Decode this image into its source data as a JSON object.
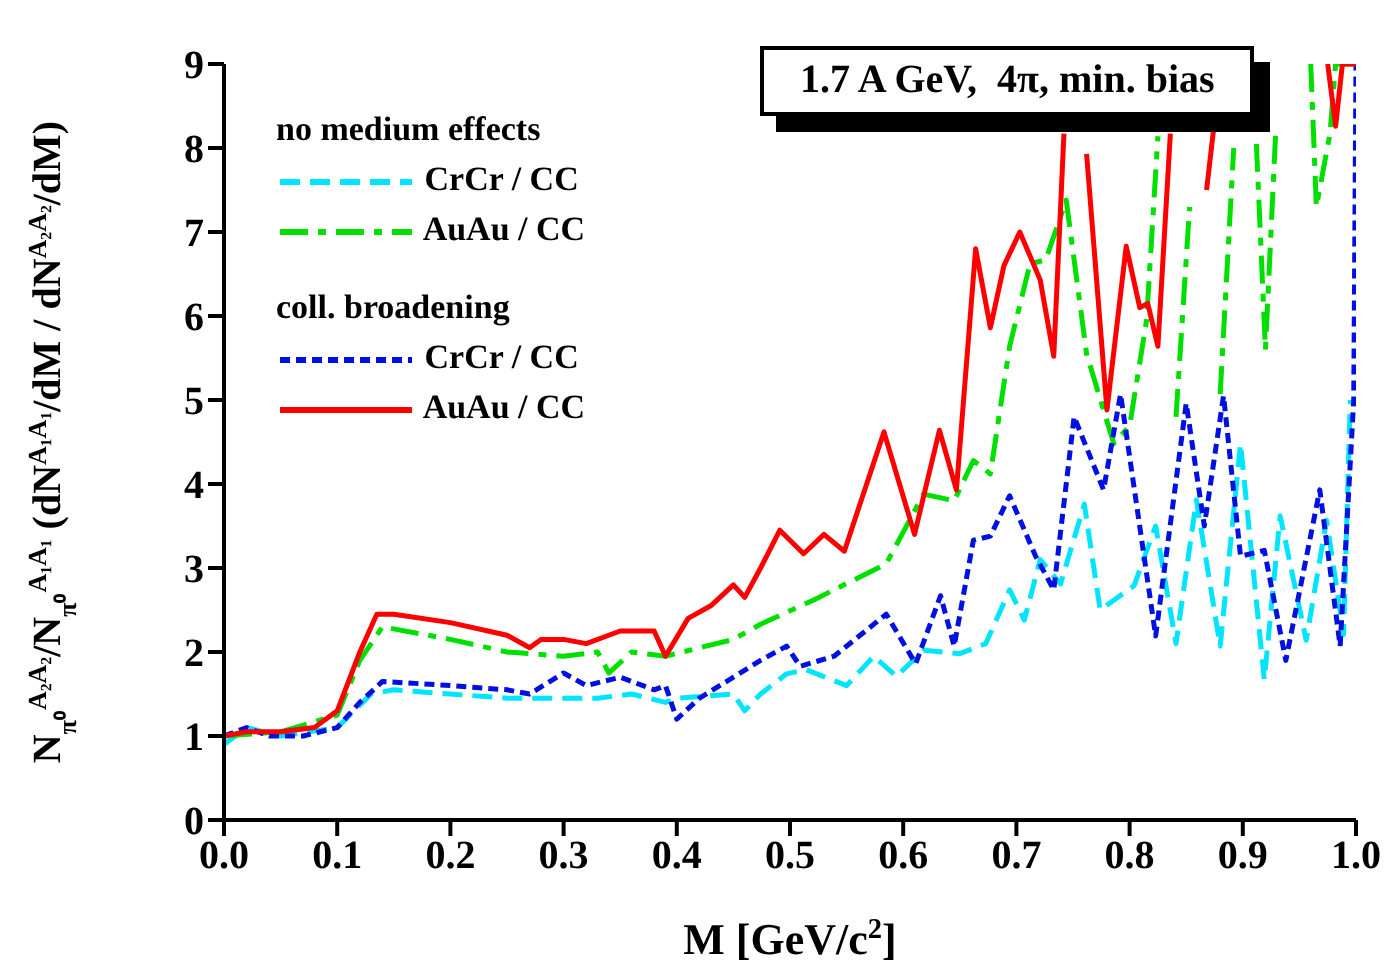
{
  "chart_data": {
    "type": "line",
    "xlabel": "M [GeV/c$^{2}$]",
    "ylabel": "N$_{π⁰}$$^{A₂A₂}$/N$_{π⁰}$$^{A₁A₁}$ (dN$^{A₁A₁}$/dM / dN$^{A₂A₂}$/dM)",
    "annotations": [
      "1.7 A GeV,  4π, min. bias",
      "no medium effects",
      "coll. broadening"
    ],
    "xlim": [
      0,
      1
    ],
    "xticks": [
      {
        "value": 0,
        "label": "0.0"
      },
      0.1,
      0.2,
      0.3,
      0.4,
      0.5,
      0.6,
      0.7,
      0.8,
      0.9,
      {
        "value": 1,
        "label": "1.0"
      }
    ],
    "ylim": [
      0,
      9
    ],
    "yticks": [
      0,
      1,
      2,
      3,
      4,
      5,
      6,
      7,
      8,
      9
    ],
    "grid": false,
    "legend": "top left",
    "series": [
      {
        "name": "CrCr / CC",
        "color": "#00e5ff",
        "line_style": "dashed",
        "x": [
          0,
          0.02,
          0.05,
          0.1,
          0.13,
          0.15,
          0.2,
          0.25,
          0.3,
          0.33,
          0.36,
          0.39,
          0.4,
          0.45,
          0.46,
          0.474,
          0.497,
          0.514,
          0.55,
          0.574,
          0.594,
          0.618,
          0.65,
          0.673,
          0.694,
          0.707,
          0.721,
          0.739,
          0.76,
          0.774,
          0.804,
          0.823,
          0.841,
          0.859,
          0.88,
          0.898,
          0.919,
          0.933,
          0.956,
          0.974,
          0.989,
          0.995
        ],
        "values": [
          0.9,
          1.1,
          1.0,
          1.1,
          1.5,
          1.55,
          1.5,
          1.45,
          1.45,
          1.45,
          1.5,
          1.4,
          1.45,
          1.5,
          1.3,
          1.5,
          1.74,
          1.79,
          1.6,
          1.95,
          1.71,
          2.02,
          1.98,
          2.1,
          2.74,
          2.38,
          3.1,
          2.81,
          3.76,
          2.5,
          2.79,
          3.5,
          2.1,
          3.81,
          2.07,
          4.48,
          1.67,
          3.62,
          2.14,
          3.57,
          2.21,
          5.0
        ]
      },
      {
        "name": "AuAu / CC",
        "color": "#00e000",
        "line_style": "dashdot",
        "x": [
          0,
          0.05,
          0.1,
          0.12,
          0.14,
          0.2,
          0.25,
          0.3,
          0.33,
          0.34,
          0.36,
          0.39,
          0.42,
          0.45,
          0.474,
          0.521,
          0.585,
          0.618,
          0.645,
          0.662,
          0.677,
          0.694,
          0.712,
          0.726,
          0.744,
          0.762,
          0.786,
          0.8,
          0.815,
          0.825,
          0.83,
          0.836,
          0.841,
          0.853,
          0.857,
          0.875,
          0.88,
          0.892,
          0.896,
          0.908,
          0.912,
          0.92,
          0.929,
          0.932,
          0.96,
          0.965,
          0.977,
          0.982,
          1.0
        ],
        "values": [
          1.0,
          1.05,
          1.25,
          1.9,
          2.3,
          2.15,
          2.0,
          1.95,
          2.0,
          1.75,
          2.0,
          1.95,
          2.05,
          2.15,
          2.33,
          2.62,
          3.05,
          3.88,
          3.8,
          4.28,
          4.12,
          5.64,
          6.62,
          6.67,
          7.38,
          5.55,
          4.48,
          4.69,
          5.95,
          8.14,
          null,
          null,
          4.8,
          7.3,
          null,
          null,
          5.07,
          8.0,
          null,
          null,
          8.05,
          5.6,
          8.17,
          null,
          9,
          7.3,
          8.17,
          9,
          9
        ]
      },
      {
        "name": "CrCr / CC",
        "color": "#0010e0",
        "line_style": "dotted",
        "x": [
          0,
          0.02,
          0.04,
          0.07,
          0.1,
          0.12,
          0.14,
          0.2,
          0.25,
          0.27,
          0.3,
          0.32,
          0.35,
          0.38,
          0.39,
          0.4,
          0.42,
          0.45,
          0.474,
          0.497,
          0.509,
          0.539,
          0.585,
          0.611,
          0.633,
          0.645,
          0.662,
          0.677,
          0.694,
          0.717,
          0.733,
          0.751,
          0.777,
          0.792,
          0.823,
          0.85,
          0.866,
          0.883,
          0.898,
          0.919,
          0.938,
          0.968,
          0.986,
          0.998,
          1.0
        ],
        "values": [
          1.0,
          1.1,
          1.0,
          1.0,
          1.1,
          1.4,
          1.65,
          1.6,
          1.55,
          1.5,
          1.75,
          1.6,
          1.7,
          1.55,
          1.6,
          1.2,
          1.45,
          1.7,
          1.9,
          2.07,
          1.83,
          1.95,
          2.45,
          1.86,
          2.67,
          2.07,
          3.33,
          3.38,
          3.86,
          3.14,
          2.74,
          4.8,
          3.93,
          5.07,
          2.19,
          4.96,
          3.5,
          5.05,
          3.14,
          3.21,
          1.9,
          3.93,
          2.07,
          5.0,
          9
        ]
      },
      {
        "name": "AuAu / CC",
        "color": "#ff0000",
        "line_style": "solid",
        "x": [
          0,
          0.02,
          0.05,
          0.08,
          0.1,
          0.12,
          0.135,
          0.15,
          0.2,
          0.25,
          0.27,
          0.28,
          0.3,
          0.32,
          0.35,
          0.38,
          0.39,
          0.41,
          0.43,
          0.45,
          0.46,
          0.474,
          0.491,
          0.512,
          0.53,
          0.548,
          0.583,
          0.61,
          0.632,
          0.647,
          0.664,
          0.677,
          0.689,
          0.703,
          0.721,
          0.733,
          0.742,
          0.745,
          0.758,
          0.762,
          0.78,
          0.797,
          0.809,
          0.816,
          0.825,
          0.836,
          0.84,
          0.862,
          0.868,
          0.874,
          0.878,
          0.975,
          0.982,
          0.988,
          1.0
        ],
        "values": [
          1.0,
          1.05,
          1.05,
          1.1,
          1.3,
          2.0,
          2.45,
          2.45,
          2.35,
          2.2,
          2.05,
          2.15,
          2.15,
          2.1,
          2.25,
          2.25,
          1.95,
          2.4,
          2.55,
          2.8,
          2.65,
          3.0,
          3.45,
          3.17,
          3.4,
          3.2,
          4.62,
          3.4,
          4.64,
          3.93,
          6.8,
          5.86,
          6.6,
          7.0,
          6.43,
          5.52,
          8.17,
          null,
          null,
          7.93,
          4.88,
          6.83,
          6.1,
          6.15,
          5.64,
          8.17,
          null,
          null,
          7.5,
          8.2,
          null,
          9,
          8.26,
          9,
          9
        ]
      }
    ]
  }
}
